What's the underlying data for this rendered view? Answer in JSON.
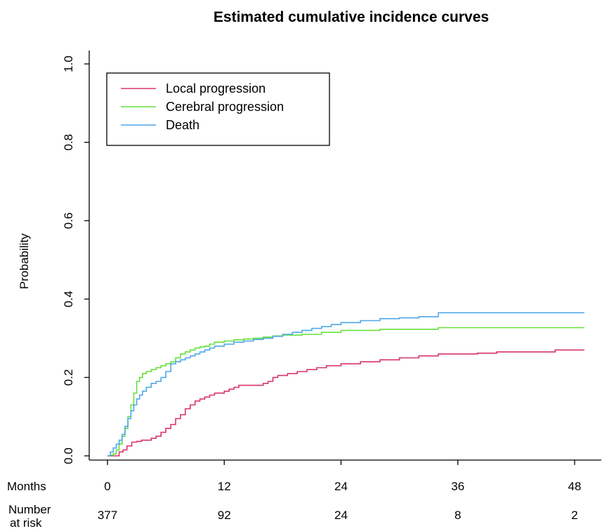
{
  "chart_data": {
    "type": "line",
    "step": true,
    "title": "Estimated cumulative incidence curves",
    "xlabel": "",
    "ylabel": "Probability",
    "xlim": [
      0,
      48
    ],
    "ylim": [
      0,
      1
    ],
    "xticks": [
      0,
      12,
      24,
      36,
      48
    ],
    "yticks": [
      "0.0",
      "0.2",
      "0.4",
      "0.6",
      "0.8",
      "1.0"
    ],
    "grid": false,
    "legend_position": "top-left",
    "risk_table": {
      "months_label": "Months",
      "number_label": "Number",
      "at_risk_label": "at risk",
      "months": [
        0,
        12,
        24,
        36,
        48
      ],
      "number_at_risk": [
        "377",
        "92",
        "24",
        "8",
        "2"
      ]
    },
    "series": [
      {
        "name": "Local progression",
        "color": "#d9336e",
        "x": [
          0,
          0.7,
          1.2,
          1.6,
          2.0,
          2.5,
          3.0,
          3.5,
          4.5,
          5.0,
          5.5,
          6.0,
          6.5,
          7.0,
          7.5,
          8.0,
          8.5,
          9.0,
          9.5,
          10.0,
          10.5,
          11.0,
          12.0,
          12.5,
          13.0,
          13.5,
          14.0,
          15.0,
          16.0,
          16.5,
          17.0,
          17.5,
          18.5,
          19.5,
          20.5,
          21.5,
          22.5,
          24.0,
          26.0,
          28.0,
          30.0,
          32.0,
          34.0,
          36.0,
          38.0,
          40.0,
          46.0,
          48.0,
          49.0
        ],
        "y": [
          0,
          0,
          0.01,
          0.015,
          0.025,
          0.035,
          0.037,
          0.04,
          0.045,
          0.05,
          0.06,
          0.07,
          0.08,
          0.095,
          0.105,
          0.12,
          0.13,
          0.14,
          0.145,
          0.15,
          0.155,
          0.16,
          0.165,
          0.17,
          0.175,
          0.18,
          0.18,
          0.18,
          0.185,
          0.19,
          0.2,
          0.205,
          0.21,
          0.215,
          0.22,
          0.225,
          0.23,
          0.235,
          0.24,
          0.245,
          0.25,
          0.255,
          0.26,
          0.26,
          0.262,
          0.265,
          0.27,
          0.27,
          0.27
        ]
      },
      {
        "name": "Cerebral progression",
        "color": "#66e03a",
        "x": [
          0,
          0.3,
          0.6,
          0.9,
          1.2,
          1.5,
          1.8,
          2.1,
          2.4,
          2.7,
          3.0,
          3.3,
          3.6,
          4.0,
          4.5,
          5.0,
          5.5,
          6.0,
          6.5,
          7.0,
          7.5,
          8.0,
          8.5,
          9.0,
          9.5,
          10.0,
          10.5,
          11.0,
          12.0,
          13.0,
          14.0,
          15.0,
          16.0,
          17.0,
          18.0,
          20.0,
          22.0,
          24.0,
          28.0,
          34.0,
          40.0,
          46.0,
          49.0
        ],
        "y": [
          0,
          0.002,
          0.005,
          0.015,
          0.03,
          0.05,
          0.07,
          0.1,
          0.13,
          0.16,
          0.19,
          0.2,
          0.21,
          0.215,
          0.22,
          0.225,
          0.23,
          0.235,
          0.24,
          0.25,
          0.26,
          0.265,
          0.27,
          0.275,
          0.278,
          0.28,
          0.285,
          0.29,
          0.293,
          0.296,
          0.298,
          0.3,
          0.303,
          0.306,
          0.308,
          0.31,
          0.315,
          0.32,
          0.323,
          0.327,
          0.327,
          0.327,
          0.327
        ]
      },
      {
        "name": "Death",
        "color": "#4fa7e8",
        "x": [
          0,
          0.3,
          0.6,
          0.9,
          1.2,
          1.5,
          1.8,
          2.1,
          2.4,
          2.7,
          3.0,
          3.3,
          3.6,
          4.0,
          4.5,
          5.0,
          5.5,
          6.0,
          6.5,
          7.0,
          7.5,
          8.0,
          8.5,
          9.0,
          9.5,
          10.0,
          10.5,
          11.0,
          12.0,
          13.0,
          14.0,
          15.0,
          16.0,
          17.0,
          18.0,
          19.0,
          20.0,
          21.0,
          22.0,
          23.0,
          24.0,
          26.0,
          28.0,
          30.0,
          32.0,
          34.0,
          36.0,
          40.0,
          46.0,
          49.0
        ],
        "y": [
          0,
          0.01,
          0.02,
          0.03,
          0.04,
          0.055,
          0.075,
          0.095,
          0.115,
          0.13,
          0.145,
          0.155,
          0.165,
          0.175,
          0.185,
          0.19,
          0.2,
          0.215,
          0.235,
          0.24,
          0.245,
          0.25,
          0.255,
          0.26,
          0.265,
          0.27,
          0.275,
          0.28,
          0.285,
          0.29,
          0.293,
          0.297,
          0.3,
          0.305,
          0.31,
          0.315,
          0.32,
          0.325,
          0.33,
          0.335,
          0.34,
          0.345,
          0.35,
          0.352,
          0.355,
          0.365,
          0.365,
          0.365,
          0.365,
          0.365
        ]
      }
    ]
  }
}
